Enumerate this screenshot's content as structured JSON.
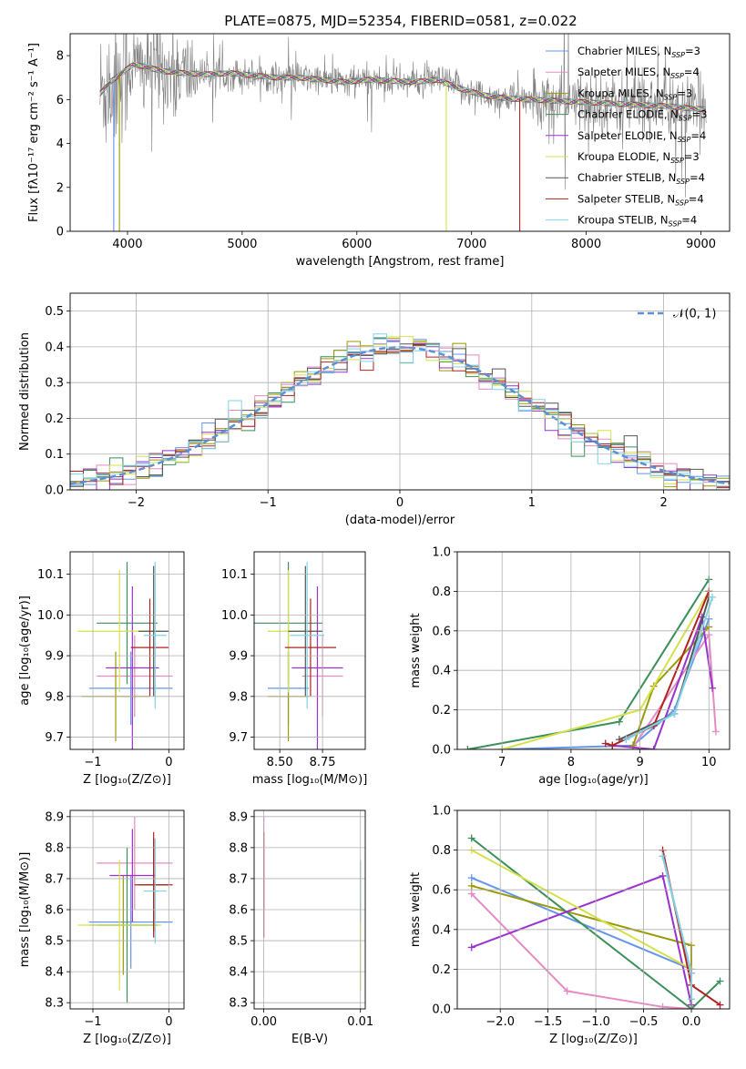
{
  "figure": {
    "title": "PLATE=0875, MJD=52354, FIBERID=0581, z=0.022"
  },
  "chart_data": [
    {
      "id": "spectrum",
      "type": "line",
      "title": "PLATE=0875, MJD=52354, FIBERID=0581, z=0.022",
      "xlabel": "wavelength [Angstrom, rest frame]",
      "ylabel": "Flux [fλ10⁻¹⁷ erg cm⁻² s⁻¹ A⁻¹]",
      "xlim": [
        3500,
        9250
      ],
      "ylim": [
        0,
        9
      ],
      "xticks": [
        "4000",
        "5000",
        "6000",
        "7000",
        "8000",
        "9000"
      ],
      "yticks": [
        "0",
        "2",
        "4",
        "6",
        "8"
      ],
      "grid": false,
      "legend_position": "right",
      "legend": [
        {
          "name": "Chabrier MILES, Nₛₚₚ=3",
          "label": "Chabrier MILES, N",
          "sub": "SSP",
          "tail": "=3",
          "color": "#6495ed"
        },
        {
          "name": "Salpeter MILES, Nₛₚₚ=4",
          "label": "Salpeter MILES, N",
          "sub": "SSP",
          "tail": "=4",
          "color": "#e68ac3"
        },
        {
          "name": "Kroupa MILES, Nₛₚₚ=3",
          "label": "Kroupa MILES, N",
          "sub": "SSP",
          "tail": "=3",
          "color": "#999900"
        },
        {
          "name": "Chabrier ELODIE, Nₛₚₚ=3",
          "label": "Chabrier ELODIE, N",
          "sub": "SSP",
          "tail": "=3",
          "color": "#3a8f5a"
        },
        {
          "name": "Salpeter ELODIE, Nₛₚₚ=4",
          "label": "Salpeter ELODIE, N",
          "sub": "SSP",
          "tail": "=4",
          "color": "#9932cc"
        },
        {
          "name": "Kroupa ELODIE, Nₛₚₚ=3",
          "label": "Kroupa ELODIE, N",
          "sub": "SSP",
          "tail": "=3",
          "color": "#d4e24a"
        },
        {
          "name": "Chabrier STELIB, Nₛₚₚ=4",
          "label": "Chabrier STELIB, N",
          "sub": "SSP",
          "tail": "=4",
          "color": "#555555"
        },
        {
          "name": "Salpeter STELIB, Nₛₚₚ=4",
          "label": "Salpeter STELIB, N",
          "sub": "SSP",
          "tail": "=4",
          "color": "#b22222"
        },
        {
          "name": "Kroupa STELIB, Nₛₚₚ=4",
          "label": "Kroupa STELIB, N",
          "sub": "SSP",
          "tail": "=4",
          "color": "#7fd4e8"
        }
      ],
      "data_color": "#808080",
      "continuum": {
        "x": [
          3750,
          3850,
          3950,
          4050,
          4150,
          4300,
          4500,
          4700,
          4900,
          5100,
          5300,
          5500,
          5700,
          5900,
          6100,
          6300,
          6500,
          6700,
          6900,
          7100,
          7300,
          7500,
          7700,
          7900,
          8100,
          8300,
          8500,
          8700,
          8900,
          9050
        ],
        "y": [
          6.2,
          6.8,
          7.2,
          7.6,
          7.5,
          7.3,
          7.2,
          7.15,
          7.2,
          7.1,
          7.0,
          7.0,
          6.9,
          6.8,
          6.9,
          6.85,
          6.8,
          6.9,
          6.5,
          6.2,
          6.05,
          6.0,
          5.95,
          5.9,
          5.85,
          5.8,
          5.75,
          5.7,
          5.6,
          5.55
        ]
      }
    },
    {
      "id": "residuals",
      "type": "histogram",
      "xlabel": "(data-model)/error",
      "ylabel": "Normed distribution",
      "xlim": [
        -2.5,
        2.5
      ],
      "ylim": [
        0,
        0.55
      ],
      "xticks": [
        "−2",
        "−1",
        "0",
        "1",
        "2"
      ],
      "yticks": [
        "0.0",
        "0.1",
        "0.2",
        "0.3",
        "0.4",
        "0.5"
      ],
      "grid": true,
      "legend": [
        {
          "name": "𝒩(0, 1)",
          "color": "#6495ed",
          "style": "dashed"
        }
      ],
      "legend_position": "top-right",
      "bin_width": 0.1
    },
    {
      "id": "age_vs_Z",
      "type": "errorbar",
      "xlabel": "Z [log₁₀(Z/Z⊙)]",
      "ylabel": "age  [log₁₀(age/yr)]",
      "xlim": [
        -1.3,
        0.2
      ],
      "ylim": [
        9.67,
        10.155
      ],
      "xticks": [
        "−1",
        "0"
      ],
      "yticks": [
        "9.7",
        "9.8",
        "9.9",
        "10.0",
        "10.1"
      ],
      "grid": true,
      "points": [
        {
          "model": "Chabrier MILES",
          "x": -0.5,
          "xerr": 0.55,
          "y": 9.82,
          "yerr": 0.09
        },
        {
          "model": "Salpeter MILES",
          "x": -0.45,
          "xerr": 0.5,
          "y": 9.85,
          "yerr": 0.1
        },
        {
          "model": "Kroupa MILES",
          "x": -0.7,
          "xerr": 0.45,
          "y": 9.8,
          "yerr": 0.11
        },
        {
          "model": "Chabrier ELODIE",
          "x": -0.55,
          "xerr": 0.4,
          "y": 9.98,
          "yerr": 0.15
        },
        {
          "model": "Salpeter ELODIE",
          "x": -0.48,
          "xerr": 0.35,
          "y": 9.87,
          "yerr": 0.2
        },
        {
          "model": "Kroupa ELODIE",
          "x": -0.65,
          "xerr": 0.55,
          "y": 9.96,
          "yerr": 0.15
        },
        {
          "model": "Chabrier STELIB",
          "x": -0.2,
          "xerr": 0.2,
          "y": 9.96,
          "yerr": 0.16
        },
        {
          "model": "Salpeter STELIB",
          "x": -0.25,
          "xerr": 0.25,
          "y": 9.92,
          "yerr": 0.12
        },
        {
          "model": "Kroupa STELIB",
          "x": -0.18,
          "xerr": 0.15,
          "y": 9.95,
          "yerr": 0.18
        }
      ]
    },
    {
      "id": "age_vs_mass",
      "type": "errorbar",
      "xlabel": "mass [log₁₀(M/M⊙)]",
      "ylabel": "",
      "xlim": [
        8.35,
        9.0
      ],
      "ylim": [
        9.67,
        10.155
      ],
      "xticks": [
        "8.50",
        "8.75"
      ],
      "yticks": [
        "9.7",
        "9.8",
        "9.9",
        "10.0",
        "10.1"
      ],
      "grid": true,
      "points": [
        {
          "model": "Chabrier MILES",
          "x": 8.55,
          "xerr": 0.12,
          "y": 9.82,
          "yerr": 0.09
        },
        {
          "model": "Salpeter MILES",
          "x": 8.75,
          "xerr": 0.12,
          "y": 9.85,
          "yerr": 0.1
        },
        {
          "model": "Kroupa MILES",
          "x": 8.55,
          "xerr": 0.12,
          "y": 9.8,
          "yerr": 0.11
        },
        {
          "model": "Chabrier ELODIE",
          "x": 8.55,
          "xerr": 0.2,
          "y": 9.98,
          "yerr": 0.15
        },
        {
          "model": "Salpeter ELODIE",
          "x": 8.72,
          "xerr": 0.15,
          "y": 9.87,
          "yerr": 0.2
        },
        {
          "model": "Kroupa ELODIE",
          "x": 8.55,
          "xerr": 0.12,
          "y": 9.96,
          "yerr": 0.15
        },
        {
          "model": "Chabrier STELIB",
          "x": 8.65,
          "xerr": 0.1,
          "y": 9.96,
          "yerr": 0.16
        },
        {
          "model": "Salpeter STELIB",
          "x": 8.68,
          "xerr": 0.15,
          "y": 9.92,
          "yerr": 0.12
        },
        {
          "model": "Kroupa STELIB",
          "x": 8.66,
          "xerr": 0.1,
          "y": 9.95,
          "yerr": 0.18
        }
      ]
    },
    {
      "id": "weight_vs_age",
      "type": "line",
      "xlabel": "age  [log₁₀(age/yr)]",
      "ylabel": "mass weight",
      "xlim": [
        6.35,
        10.3
      ],
      "ylim": [
        0,
        1.0
      ],
      "xticks": [
        "7",
        "8",
        "9",
        "10"
      ],
      "yticks": [
        "0.0",
        "0.2",
        "0.4",
        "0.6",
        "0.8",
        "1.0"
      ],
      "grid": true,
      "series": [
        {
          "model": "Chabrier MILES",
          "x": [
            7.0,
            8.9,
            9.5,
            10.0
          ],
          "y": [
            0.0,
            0.02,
            0.2,
            0.66
          ]
        },
        {
          "model": "Salpeter MILES",
          "x": [
            8.9,
            10.0,
            10.1
          ],
          "y": [
            0.01,
            0.58,
            0.09
          ]
        },
        {
          "model": "Kroupa MILES",
          "x": [
            8.9,
            9.2,
            10.0
          ],
          "y": [
            0.02,
            0.32,
            0.62
          ]
        },
        {
          "model": "Chabrier ELODIE",
          "x": [
            6.5,
            8.7,
            10.0
          ],
          "y": [
            0.0,
            0.14,
            0.86
          ]
        },
        {
          "model": "Salpeter ELODIE",
          "x": [
            8.6,
            9.2,
            9.9,
            10.05
          ],
          "y": [
            0.02,
            0.0,
            0.67,
            0.31
          ]
        },
        {
          "model": "Kroupa ELODIE",
          "x": [
            7.0,
            9.0,
            10.0
          ],
          "y": [
            0.0,
            0.2,
            0.8
          ]
        },
        {
          "model": "Chabrier STELIB",
          "x": [
            8.7,
            9.5,
            10.0
          ],
          "y": [
            0.05,
            0.18,
            0.77
          ]
        },
        {
          "model": "Salpeter STELIB",
          "x": [
            8.5,
            8.6,
            9.2,
            10.0
          ],
          "y": [
            0.03,
            0.02,
            0.12,
            0.8
          ]
        },
        {
          "model": "Kroupa STELIB",
          "x": [
            8.8,
            9.5,
            10.05
          ],
          "y": [
            0.05,
            0.18,
            0.77
          ]
        }
      ]
    },
    {
      "id": "mass_vs_Z",
      "type": "errorbar",
      "xlabel": "Z [log₁₀(Z/Z⊙)]",
      "ylabel": "mass [log₁₀(M/M⊙)]",
      "xlim": [
        -1.3,
        0.2
      ],
      "ylim": [
        8.28,
        8.92
      ],
      "xticks": [
        "−1",
        "0"
      ],
      "yticks": [
        "8.3",
        "8.4",
        "8.5",
        "8.6",
        "8.7",
        "8.8",
        "8.9"
      ],
      "grid": true,
      "points": [
        {
          "model": "Chabrier MILES",
          "x": -0.5,
          "xerr": 0.55,
          "y": 8.56,
          "yerr": 0.15
        },
        {
          "model": "Salpeter MILES",
          "x": -0.45,
          "xerr": 0.5,
          "y": 8.75,
          "yerr": 0.15
        },
        {
          "model": "Kroupa MILES",
          "x": -0.6,
          "xerr": 0.45,
          "y": 8.55,
          "yerr": 0.16
        },
        {
          "model": "Chabrier ELODIE",
          "x": -0.55,
          "xerr": 0.4,
          "y": 8.55,
          "yerr": 0.25
        },
        {
          "model": "Salpeter ELODIE",
          "x": -0.48,
          "xerr": 0.3,
          "y": 8.71,
          "yerr": 0.15
        },
        {
          "model": "Kroupa ELODIE",
          "x": -0.65,
          "xerr": 0.55,
          "y": 8.55,
          "yerr": 0.21
        },
        {
          "model": "Chabrier STELIB",
          "x": -0.2,
          "xerr": 0.2,
          "y": 8.68,
          "yerr": 0.15
        },
        {
          "model": "Salpeter STELIB",
          "x": -0.2,
          "xerr": 0.25,
          "y": 8.68,
          "yerr": 0.17
        },
        {
          "model": "Kroupa STELIB",
          "x": -0.18,
          "xerr": 0.15,
          "y": 8.66,
          "yerr": 0.17
        }
      ]
    },
    {
      "id": "mass_vs_EBV",
      "type": "errorbar",
      "xlabel": "E(B-V)",
      "ylabel": "",
      "xlim": [
        -0.001,
        0.0105
      ],
      "ylim": [
        8.28,
        8.92
      ],
      "xticks": [
        "0.00",
        "0.01"
      ],
      "yticks": [
        "8.3",
        "8.4",
        "8.5",
        "8.6",
        "8.7",
        "8.8",
        "8.9"
      ],
      "grid": true,
      "points": [
        {
          "model": "Salpeter MILES",
          "x": 0.0,
          "xerr": 0,
          "y": 8.75,
          "yerr": 0.15
        },
        {
          "model": "Salpeter STELIB",
          "x": 0.0,
          "xerr": 0,
          "y": 8.68,
          "yerr": 0.17
        },
        {
          "model": "Kroupa ELODIE",
          "x": 0.01,
          "xerr": 0,
          "y": 8.55,
          "yerr": 0.21
        },
        {
          "model": "Kroupa STELIB",
          "x": 0.01,
          "xerr": 0,
          "y": 8.66,
          "yerr": 0.1
        }
      ]
    },
    {
      "id": "weight_vs_Z",
      "type": "line",
      "xlabel": "Z [log₁₀(Z/Z⊙)]",
      "ylabel": "mass weight",
      "xlim": [
        -2.45,
        0.4
      ],
      "ylim": [
        0,
        1.0
      ],
      "xticks": [
        "−2.0",
        "−1.5",
        "−1.0",
        "−0.5",
        "0.0"
      ],
      "yticks": [
        "0.0",
        "0.2",
        "0.4",
        "0.6",
        "0.8",
        "1.0"
      ],
      "grid": true,
      "series": [
        {
          "model": "Chabrier MILES",
          "x": [
            -2.3,
            0.0
          ],
          "y": [
            0.66,
            0.2
          ]
        },
        {
          "model": "Salpeter MILES",
          "x": [
            -2.3,
            -1.3,
            -0.3,
            0.0
          ],
          "y": [
            0.58,
            0.09,
            0.01,
            0.0
          ]
        },
        {
          "model": "Kroupa MILES",
          "x": [
            -2.3,
            0.0,
            0.0
          ],
          "y": [
            0.62,
            0.32,
            0.02
          ]
        },
        {
          "model": "Chabrier ELODIE",
          "x": [
            -2.3,
            0.0,
            0.3
          ],
          "y": [
            0.86,
            0.0,
            0.14
          ]
        },
        {
          "model": "Salpeter ELODIE",
          "x": [
            -2.3,
            -0.3,
            0.0
          ],
          "y": [
            0.31,
            0.67,
            0.02
          ]
        },
        {
          "model": "Kroupa ELODIE",
          "x": [
            -2.3,
            0.0
          ],
          "y": [
            0.8,
            0.2
          ]
        },
        {
          "model": "Chabrier STELIB",
          "x": [
            -0.3,
            0.0,
            0.0
          ],
          "y": [
            0.77,
            0.18,
            0.05
          ]
        },
        {
          "model": "Salpeter STELIB",
          "x": [
            -0.3,
            0.0,
            0.3
          ],
          "y": [
            0.8,
            0.12,
            0.02
          ]
        },
        {
          "model": "Kroupa STELIB",
          "x": [
            -0.3,
            0.0,
            0.0
          ],
          "y": [
            0.77,
            0.18,
            0.05
          ]
        }
      ]
    }
  ]
}
